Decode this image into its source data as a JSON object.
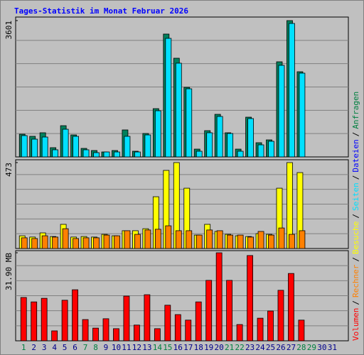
{
  "chart_data": {
    "type": "bar",
    "title": "Tages-Statistik im Monat Februar 2026",
    "categories": [
      "1",
      "2",
      "3",
      "4",
      "5",
      "6",
      "7",
      "8",
      "9",
      "10",
      "11",
      "12",
      "13",
      "14",
      "15",
      "16",
      "17",
      "18",
      "19",
      "20",
      "21",
      "22",
      "23",
      "24",
      "25",
      "26",
      "27",
      "28",
      "29",
      "30",
      "31"
    ],
    "category_colors": [
      "#008040",
      "#00008b",
      "#00008b",
      "#00008b",
      "#00008b",
      "#00008b",
      "#008040",
      "#008040",
      "#00008b",
      "#00008b",
      "#00008b",
      "#00008b",
      "#00008b",
      "#008040",
      "#008040",
      "#00008b",
      "#00008b",
      "#00008b",
      "#00008b",
      "#00008b",
      "#008040",
      "#008040",
      "#00008b",
      "#00008b",
      "#00008b",
      "#00008b",
      "#00008b",
      "#008040",
      "#008040",
      "#00008b",
      "#00008b"
    ],
    "grid_lines": 5,
    "legend_separator": "/",
    "legend": [
      {
        "name": "Volumen",
        "color": "#ff0000"
      },
      {
        "name": "Rechner",
        "color": "#ff8000"
      },
      {
        "name": "Besuche",
        "color": "#ffff00"
      },
      {
        "name": "Seiten",
        "color": "#00e0ff"
      },
      {
        "name": "Dateien",
        "color": "#0000ff"
      },
      {
        "name": "Anfragen",
        "color": "#008040"
      }
    ],
    "panels": [
      {
        "ylim": [
          0,
          3601
        ],
        "yticks": [
          3601
        ],
        "series": [
          {
            "name": "Anfragen",
            "color": "#00805c",
            "values": [
              600,
              544,
              638,
              244,
              825,
              581,
              225,
              169,
              131,
              169,
              713,
              150,
              619,
              1275,
              3245,
              2607,
              1838,
              206,
              694,
              1125,
              638,
              206,
              1050,
              375,
              450,
              2513,
              3601,
              2250,
              null,
              null,
              null
            ]
          },
          {
            "name": "Seiten",
            "color": "#00e0ff",
            "values": [
              563,
              469,
              525,
              188,
              731,
              544,
              188,
              113,
              131,
              131,
              544,
              131,
              581,
              1219,
              3132,
              2476,
              1800,
              150,
              638,
              1069,
              619,
              150,
              1013,
              319,
              413,
              2419,
              3526,
              2213,
              null,
              null,
              null
            ]
          }
        ]
      },
      {
        "ylim": [
          0,
          473
        ],
        "yticks": [
          473
        ],
        "series": [
          {
            "name": "Besuche",
            "color": "#ffff00",
            "values": [
              70,
              63,
              86,
              66,
              133,
              63,
              66,
              63,
              78,
              70,
              98,
              98,
              109,
              285,
              430,
              473,
              332,
              74,
              133,
              94,
              78,
              70,
              66,
              82,
              78,
              332,
              473,
              418,
              null,
              null,
              null
            ]
          },
          {
            "name": "Rechner",
            "color": "#ff8000",
            "values": [
              59,
              55,
              70,
              63,
              109,
              55,
              59,
              59,
              74,
              70,
              98,
              78,
              102,
              106,
              125,
              98,
              98,
              74,
              102,
              98,
              74,
              74,
              63,
              94,
              74,
              113,
              78,
              98,
              null,
              null,
              null
            ]
          }
        ]
      },
      {
        "ylim": [
          0,
          31.9
        ],
        "yticks": [
          {
            "value": 31.9,
            "label": "31.90 MB"
          }
        ],
        "series": [
          {
            "name": "Volumen",
            "color": "#ff0000",
            "values": [
              15.7,
              14.1,
              15.4,
              3.6,
              14.7,
              18.5,
              7.7,
              4.6,
              8.0,
              4.4,
              16.2,
              5.7,
              16.7,
              4.4,
              12.9,
              9.5,
              7.5,
              14.1,
              21.9,
              31.9,
              21.9,
              5.9,
              30.9,
              8.2,
              10.8,
              18.3,
              24.4,
              7.5,
              null,
              null,
              null
            ]
          }
        ]
      }
    ]
  }
}
